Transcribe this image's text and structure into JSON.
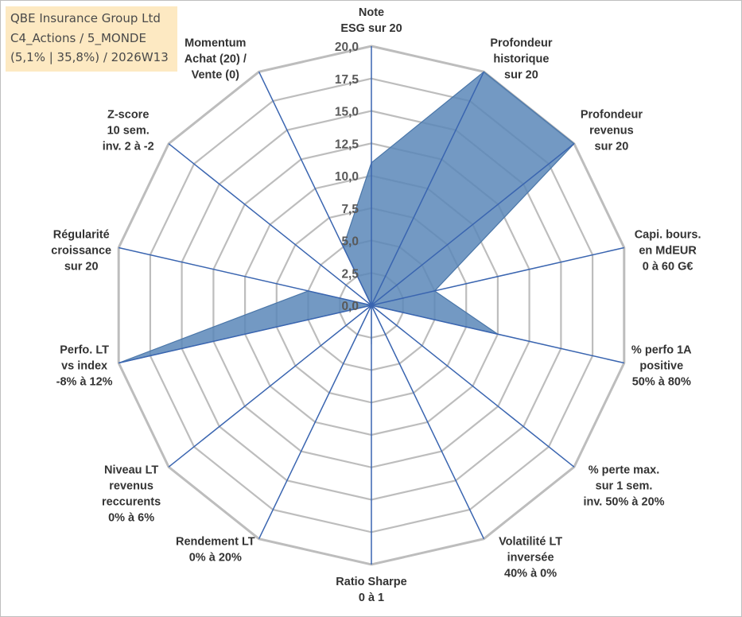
{
  "header": {
    "company": "QBE Insurance Group Ltd",
    "category": "C4_Actions / 5_MONDE",
    "stats": "(5,1% | 35,8%) / 2026W13"
  },
  "chart_data": {
    "type": "radar",
    "axes": [
      [
        "Note",
        "ESG sur 20"
      ],
      [
        "Profondeur",
        "historique",
        "sur 20"
      ],
      [
        "Profondeur",
        "revenus",
        "sur 20"
      ],
      [
        "Capi. bours.",
        "en MdEUR",
        "0 à 60 G€"
      ],
      [
        "% perfo 1A",
        "positive",
        "50% à 80%"
      ],
      [
        "% perte max.",
        "sur 1 sem.",
        "inv. 50% à 20%"
      ],
      [
        "Volatilité LT",
        "inversée",
        "40% à 0%"
      ],
      [
        "Ratio Sharpe",
        "0 à 1"
      ],
      [
        "Rendement LT",
        "0% à 20%"
      ],
      [
        "Niveau LT",
        "revenus",
        "reccurents",
        "0% à 6%"
      ],
      [
        "Perfo. LT",
        "vs index",
        "-8% à 12%"
      ],
      [
        "Régularité",
        "croissance",
        "sur 20"
      ],
      [
        "Z-score",
        "10 sem.",
        "inv. 2 à -2"
      ],
      [
        "Momentum",
        "Achat (20) /",
        "Vente (0)"
      ]
    ],
    "ticks": [
      "0,0",
      "2,5",
      "5,0",
      "7,5",
      "10,0",
      "12,5",
      "15,0",
      "17,5",
      "20,0"
    ],
    "rmin": 0,
    "rmax": 20,
    "values": [
      11,
      20,
      20,
      5,
      10,
      0,
      0,
      3,
      0,
      0,
      20,
      5,
      0,
      5
    ],
    "colors": {
      "fill": "#5b87b8",
      "fill_stroke": "#4a76a8",
      "spoke": "#3a65b0",
      "grid": "#bdbdbd"
    }
  }
}
